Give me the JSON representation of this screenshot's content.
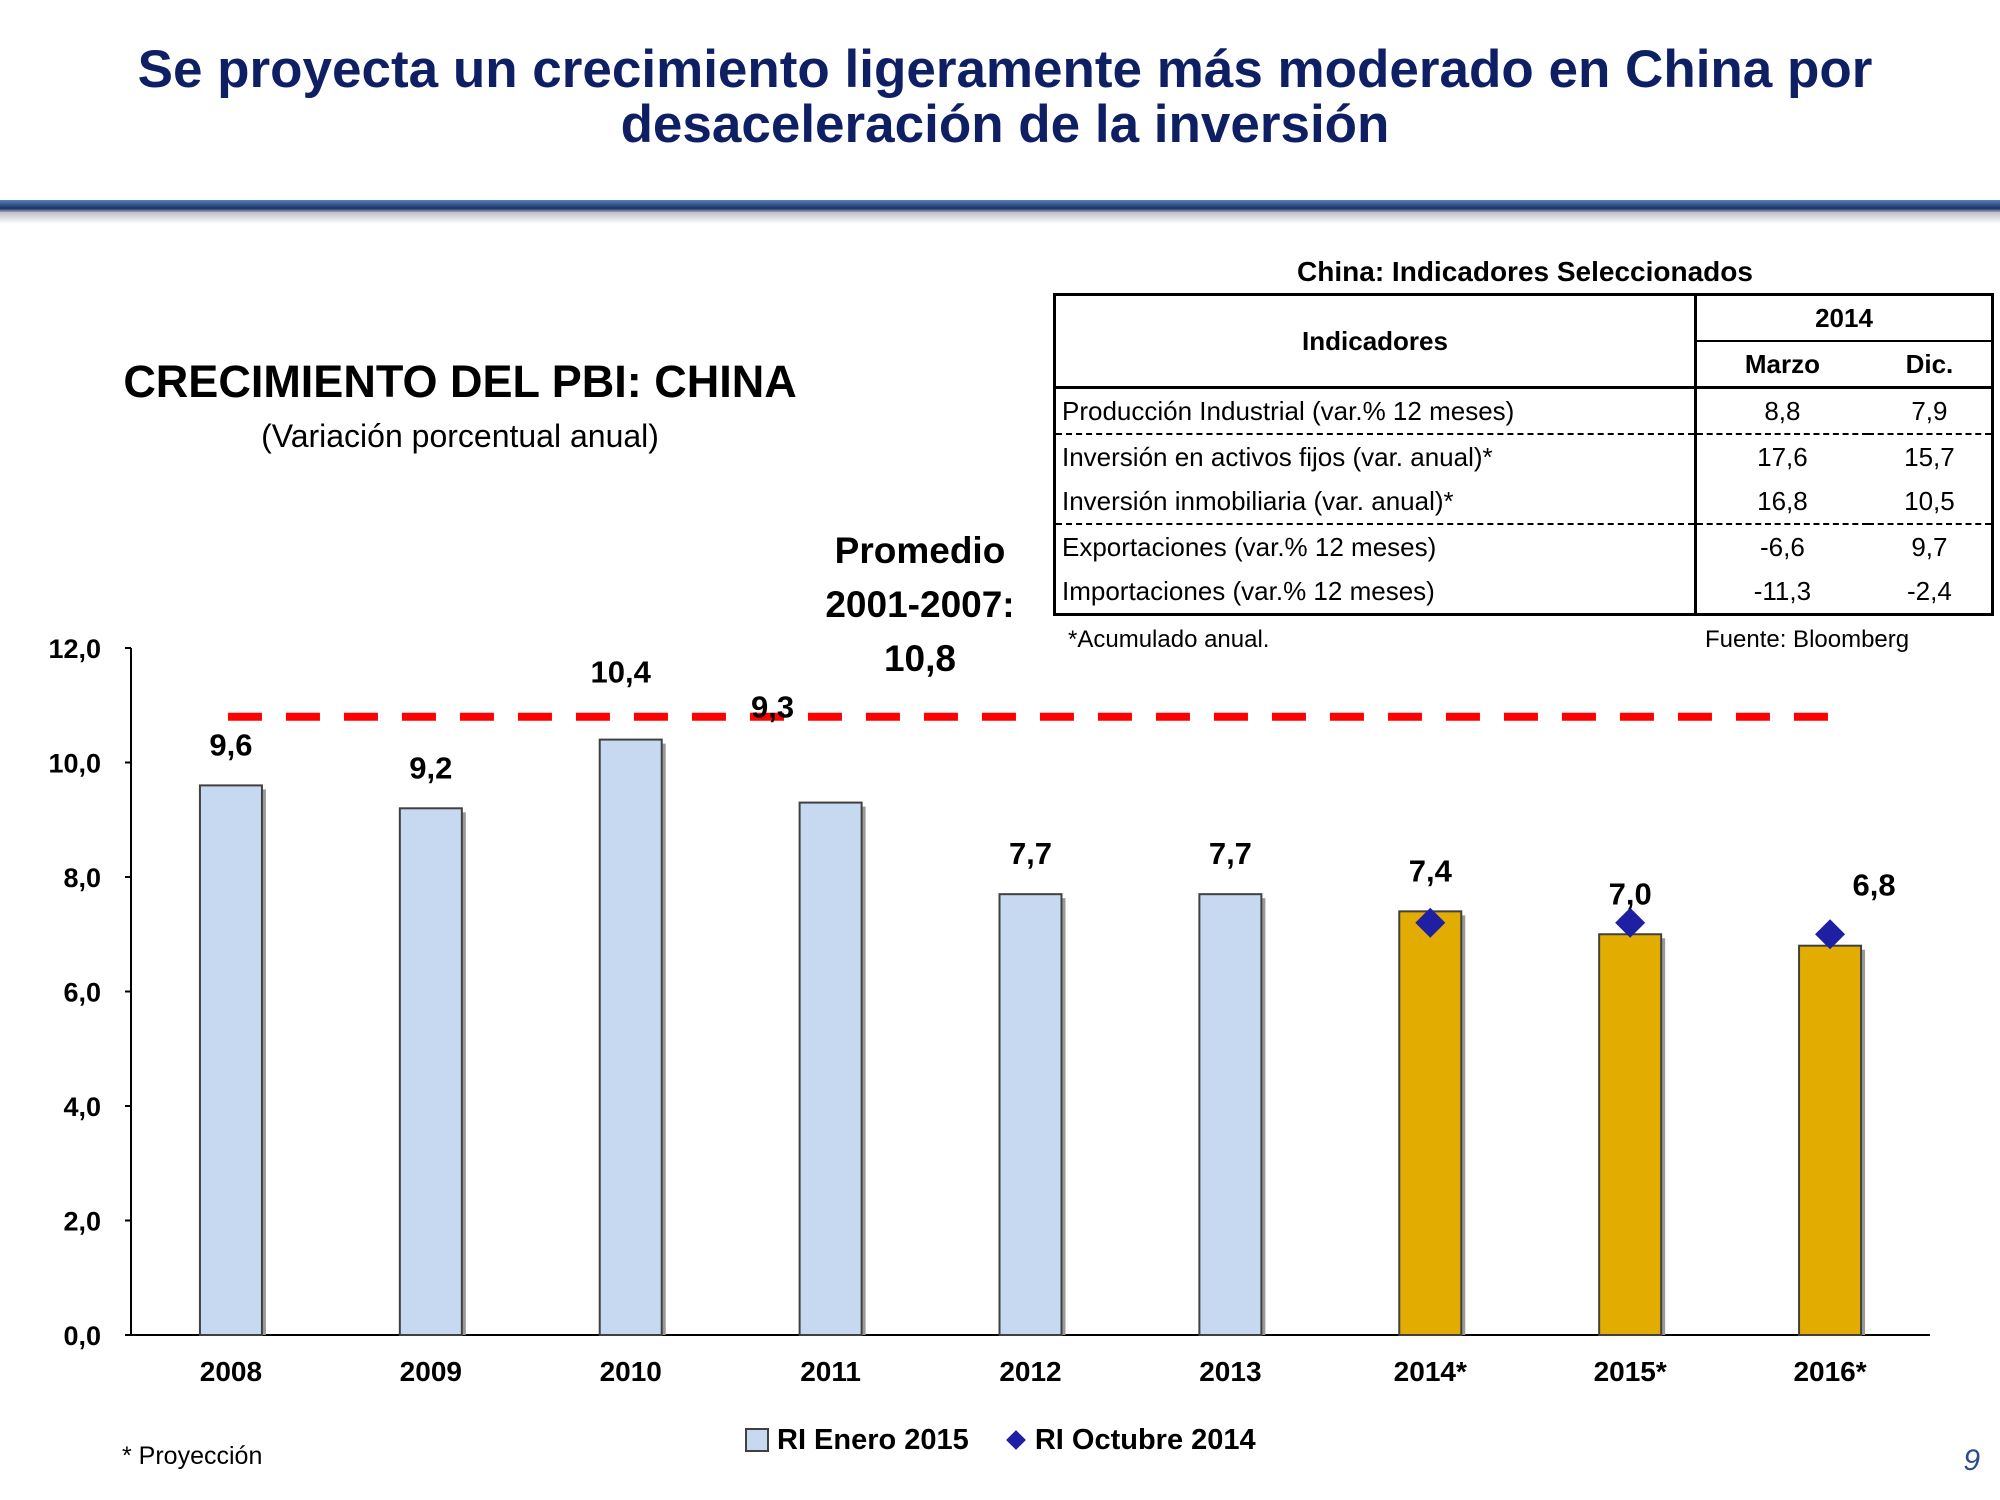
{
  "slide": {
    "title_line1": "Se proyecta un crecimiento ligeramente más moderado en China por",
    "title_line2": "desaceleración de la inversión",
    "page_number": "9",
    "footnote": "* Proyección"
  },
  "chart_data": {
    "type": "bar",
    "title": "CRECIMIENTO DEL PBI: CHINA",
    "subtitle": "(Variación porcentual anual)",
    "categories": [
      "2008",
      "2009",
      "2010",
      "2011",
      "2012",
      "2013",
      "2014*",
      "2015*",
      "2016*"
    ],
    "series": [
      {
        "name": "RI Enero 2015",
        "type": "bar",
        "values": [
          9.6,
          9.2,
          10.4,
          9.3,
          7.7,
          7.7,
          7.4,
          7.0,
          6.8
        ],
        "labels": [
          "9,6",
          "9,2",
          "10,4",
          "9,3",
          "7,7",
          "7,7",
          "7,4",
          "7,0",
          "6,8"
        ],
        "color": "#c6d9f1",
        "projection_color": "#e3ac00"
      },
      {
        "name": "RI Octubre 2014",
        "type": "scatter",
        "marker": "diamond",
        "values": [
          null,
          null,
          null,
          null,
          null,
          null,
          7.2,
          7.2,
          7.0
        ],
        "color": "#1f1fa4"
      }
    ],
    "projection_from_index": 6,
    "reference_line": {
      "value": 10.8,
      "label_line1": "Promedio",
      "label_line2": "2001-2007:",
      "label_line3": "10,8",
      "color": "#ff0000",
      "style": "dashed"
    },
    "ylim": [
      0,
      12
    ],
    "yticks": [
      "0,0",
      "2,0",
      "4,0",
      "6,0",
      "8,0",
      "10,0",
      "12,0"
    ],
    "grid": false,
    "legend_position": "bottom"
  },
  "table": {
    "caption": "China: Indicadores Seleccionados",
    "header_indicator": "Indicadores",
    "header_year": "2014",
    "col_march": "Marzo",
    "col_dec": "Dic.",
    "rows": [
      {
        "label": "Producción Industrial (var.% 12 meses)",
        "march": "8,8",
        "dec": "7,9"
      },
      {
        "label": "Inversión en activos fijos (var. anual)*",
        "march": "17,6",
        "dec": "15,7"
      },
      {
        "label": "Inversión inmobiliaria (var. anual)*",
        "march": "16,8",
        "dec": "10,5"
      },
      {
        "label": "Exportaciones (var.% 12 meses)",
        "march": "-6,6",
        "dec": "9,7"
      },
      {
        "label": "Importaciones (var.% 12 meses)",
        "march": "-11,3",
        "dec": "-2,4"
      }
    ],
    "note": "*Acumulado anual.",
    "source": "Fuente: Bloomberg"
  }
}
